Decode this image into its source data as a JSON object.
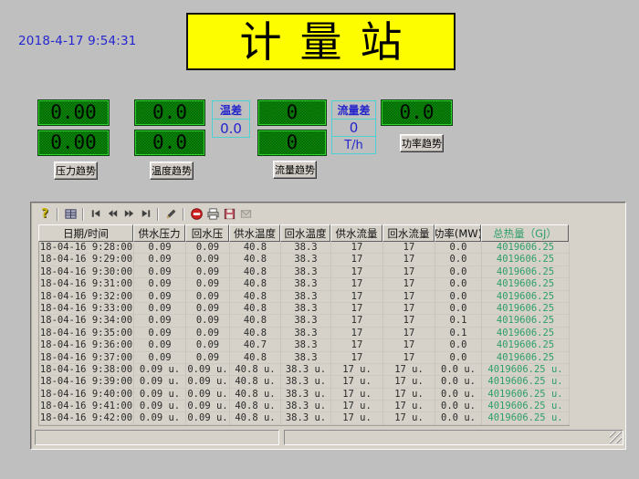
{
  "window": {
    "timestamp": "2018-4-17 9:54:31",
    "title": "计量站"
  },
  "panel": {
    "leds": [
      {
        "name": "supply-pressure",
        "value": "0.00"
      },
      {
        "name": "return-pressure",
        "value": "0.00"
      },
      {
        "name": "supply-temperature",
        "value": "0.0"
      },
      {
        "name": "return-temperature",
        "value": "0.0"
      },
      {
        "name": "supply-flow",
        "value": "0"
      },
      {
        "name": "return-flow",
        "value": "0"
      },
      {
        "name": "power",
        "value": "0.0"
      }
    ],
    "temp_diff": {
      "label": "温差",
      "value": "0.0"
    },
    "flow_diff": {
      "label": "流量差",
      "value": "0",
      "unit": "T/h"
    },
    "trend_buttons": {
      "pressure": "压力趋势",
      "temperature": "温度趋势",
      "flow": "流量趋势",
      "power": "功率趋势"
    }
  },
  "table": {
    "toolbar_icons": [
      "key",
      "grid",
      "nav-first",
      "nav-prev",
      "nav-next",
      "nav-last",
      "edit-pencil",
      "stop",
      "print",
      "save",
      "export"
    ],
    "headers": [
      "日期/时间",
      "供水压力",
      "回水压",
      "供水温度",
      "回水温度",
      "供水流量",
      "回水流量",
      "功率(MW)",
      "总热量（GJ）"
    ],
    "rows": [
      [
        "18-04-16 9:28:00",
        "0.09",
        "0.09",
        "40.8",
        "38.3",
        "17",
        "17",
        "0.0",
        "4019606.25"
      ],
      [
        "18-04-16 9:29:00",
        "0.09",
        "0.09",
        "40.8",
        "38.3",
        "17",
        "17",
        "0.0",
        "4019606.25"
      ],
      [
        "18-04-16 9:30:00",
        "0.09",
        "0.09",
        "40.8",
        "38.3",
        "17",
        "17",
        "0.0",
        "4019606.25"
      ],
      [
        "18-04-16 9:31:00",
        "0.09",
        "0.09",
        "40.8",
        "38.3",
        "17",
        "17",
        "0.0",
        "4019606.25"
      ],
      [
        "18-04-16 9:32:00",
        "0.09",
        "0.09",
        "40.8",
        "38.3",
        "17",
        "17",
        "0.0",
        "4019606.25"
      ],
      [
        "18-04-16 9:33:00",
        "0.09",
        "0.09",
        "40.8",
        "38.3",
        "17",
        "17",
        "0.0",
        "4019606.25"
      ],
      [
        "18-04-16 9:34:00",
        "0.09",
        "0.09",
        "40.8",
        "38.3",
        "17",
        "17",
        "0.1",
        "4019606.25"
      ],
      [
        "18-04-16 9:35:00",
        "0.09",
        "0.09",
        "40.8",
        "38.3",
        "17",
        "17",
        "0.1",
        "4019606.25"
      ],
      [
        "18-04-16 9:36:00",
        "0.09",
        "0.09",
        "40.7",
        "38.3",
        "17",
        "17",
        "0.0",
        "4019606.25"
      ],
      [
        "18-04-16 9:37:00",
        "0.09",
        "0.09",
        "40.8",
        "38.3",
        "17",
        "17",
        "0.0",
        "4019606.25"
      ],
      [
        "18-04-16 9:38:00",
        "0.09 u.",
        "0.09 u.",
        "40.8 u.",
        "38.3 u.",
        "17 u.",
        "17 u.",
        "0.0 u.",
        "4019606.25 u."
      ],
      [
        "18-04-16 9:39:00",
        "0.09 u.",
        "0.09 u.",
        "40.8 u.",
        "38.3 u.",
        "17 u.",
        "17 u.",
        "0.0 u.",
        "4019606.25 u."
      ],
      [
        "18-04-16 9:40:00",
        "0.09 u.",
        "0.09 u.",
        "40.8 u.",
        "38.3 u.",
        "17 u.",
        "17 u.",
        "0.0 u.",
        "4019606.25 u."
      ],
      [
        "18-04-16 9:41:00",
        "0.09 u.",
        "0.09 u.",
        "40.8 u.",
        "38.3 u.",
        "17 u.",
        "17 u.",
        "0.0 u.",
        "4019606.25 u."
      ],
      [
        "18-04-16 9:42:00",
        "0.09 u.",
        "0.09 u.",
        "40.8 u.",
        "38.3 u.",
        "17 u.",
        "17 u.",
        "0.0 u.",
        "4019606.25 u."
      ]
    ],
    "status_left": "",
    "status_right": ""
  },
  "colors": {
    "banner_bg": "#fdfd00",
    "led_green": "#077d07",
    "value_blue": "#2323cc",
    "heat_green": "#2e9e68",
    "cyan_border": "#4ad2d2"
  }
}
